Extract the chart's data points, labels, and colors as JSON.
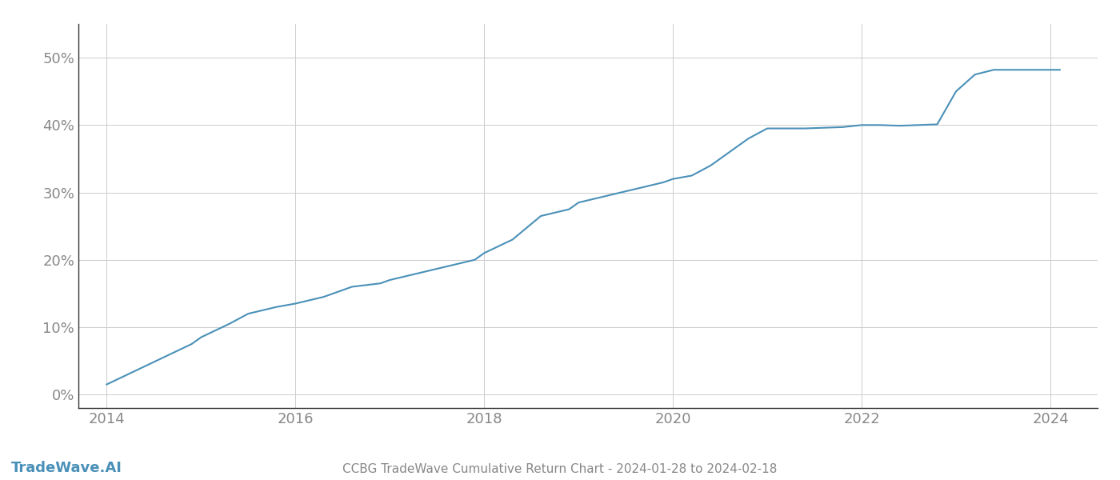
{
  "title": "CCBG TradeWave Cumulative Return Chart - 2024-01-28 to 2024-02-18",
  "watermark": "TradeWave.AI",
  "line_color": "#4a90b8",
  "background_color": "#ffffff",
  "grid_color": "#cccccc",
  "x_values": [
    2014.0,
    2014.3,
    2014.6,
    2014.9,
    2015.0,
    2015.3,
    2015.5,
    2015.8,
    2016.0,
    2016.3,
    2016.6,
    2016.9,
    2017.0,
    2017.3,
    2017.6,
    2017.9,
    2018.0,
    2018.3,
    2018.6,
    2018.9,
    2019.0,
    2019.3,
    2019.6,
    2019.9,
    2020.0,
    2020.2,
    2020.4,
    2020.6,
    2020.8,
    2021.0,
    2021.2,
    2021.4,
    2021.6,
    2021.8,
    2022.0,
    2022.2,
    2022.4,
    2022.6,
    2022.8,
    2023.0,
    2023.2,
    2023.4,
    2023.6,
    2023.8,
    2024.0,
    2024.1
  ],
  "y_values": [
    1.5,
    3.5,
    5.5,
    7.5,
    8.5,
    10.5,
    12.0,
    13.0,
    13.5,
    14.5,
    16.0,
    16.5,
    17.0,
    18.0,
    19.0,
    20.0,
    21.0,
    23.0,
    26.5,
    27.5,
    28.5,
    29.5,
    30.5,
    31.5,
    32.0,
    32.5,
    34.0,
    36.0,
    38.0,
    39.5,
    39.5,
    39.5,
    39.6,
    39.7,
    40.0,
    40.0,
    39.9,
    40.0,
    40.1,
    45.0,
    47.5,
    48.2,
    48.2,
    48.2,
    48.2,
    48.2
  ],
  "xlim": [
    2013.7,
    2024.5
  ],
  "ylim": [
    -2,
    55
  ],
  "yticks": [
    0,
    10,
    20,
    30,
    40,
    50
  ],
  "ytick_labels": [
    "0%",
    "10%",
    "20%",
    "30%",
    "40%",
    "50%"
  ],
  "xticks": [
    2014,
    2016,
    2018,
    2020,
    2022,
    2024
  ],
  "xtick_labels": [
    "2014",
    "2016",
    "2018",
    "2020",
    "2022",
    "2024"
  ],
  "line_width": 1.5,
  "title_fontsize": 11,
  "tick_fontsize": 13,
  "watermark_fontsize": 13,
  "spine_color": "#333333",
  "tick_label_color": "#888888"
}
